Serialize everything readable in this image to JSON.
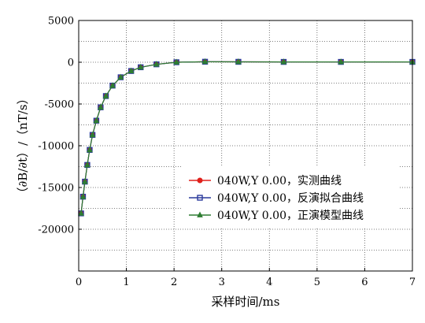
{
  "chart_data": {
    "type": "line",
    "xlabel": "采样时间/ms",
    "ylabel": "（∂B/∂t）/（nT/s）",
    "xlim": [
      0,
      7
    ],
    "ylim": [
      -25000,
      5000
    ],
    "xticks": [
      "0",
      "1",
      "2",
      "3",
      "4",
      "5",
      "6",
      "7"
    ],
    "yticks": [
      "5000",
      "0",
      "-5000",
      "-10000",
      "-15000",
      "-20000"
    ],
    "grid": true,
    "grid_style": "dotted",
    "legend_position": "lower-right",
    "series": [
      {
        "name": "040W,Y 0.00，实测曲线",
        "color": "#e0201b",
        "marker": "circle",
        "x": [
          0.05,
          0.09,
          0.13,
          0.18,
          0.23,
          0.29,
          0.37,
          0.46,
          0.57,
          0.71,
          0.88,
          1.1,
          1.3,
          1.63,
          2.05,
          2.65,
          3.35,
          4.3,
          5.5,
          7.0
        ],
        "y": [
          -18100,
          -16100,
          -14300,
          -12300,
          -10500,
          -8700,
          -7000,
          -5400,
          -4050,
          -2800,
          -1800,
          -1050,
          -600,
          -250,
          0,
          60,
          50,
          40,
          40,
          40
        ]
      },
      {
        "name": "040W,Y 0.00，反演拟合曲线",
        "color": "#2a3a9c",
        "marker": "square",
        "x": [
          0.05,
          0.09,
          0.13,
          0.18,
          0.23,
          0.29,
          0.37,
          0.46,
          0.57,
          0.71,
          0.88,
          1.1,
          1.3,
          1.63,
          2.05,
          2.65,
          3.35,
          4.3,
          5.5,
          7.0
        ],
        "y": [
          -18100,
          -16100,
          -14300,
          -12300,
          -10500,
          -8700,
          -7000,
          -5400,
          -4050,
          -2800,
          -1800,
          -1050,
          -600,
          -250,
          0,
          60,
          50,
          40,
          40,
          40
        ]
      },
      {
        "name": "040W,Y 0.00，正演模型曲线",
        "color": "#2e7d32",
        "marker": "triangle",
        "x": [
          0.05,
          0.09,
          0.13,
          0.18,
          0.23,
          0.29,
          0.37,
          0.46,
          0.57,
          0.71,
          0.88,
          1.1,
          1.3,
          1.63,
          2.05,
          2.65,
          3.35,
          4.3,
          5.5,
          7.0
        ],
        "y": [
          -18100,
          -16100,
          -14300,
          -12300,
          -10500,
          -8700,
          -7000,
          -5400,
          -4050,
          -2800,
          -1800,
          -1050,
          -600,
          -250,
          0,
          60,
          50,
          40,
          40,
          40
        ]
      }
    ]
  }
}
